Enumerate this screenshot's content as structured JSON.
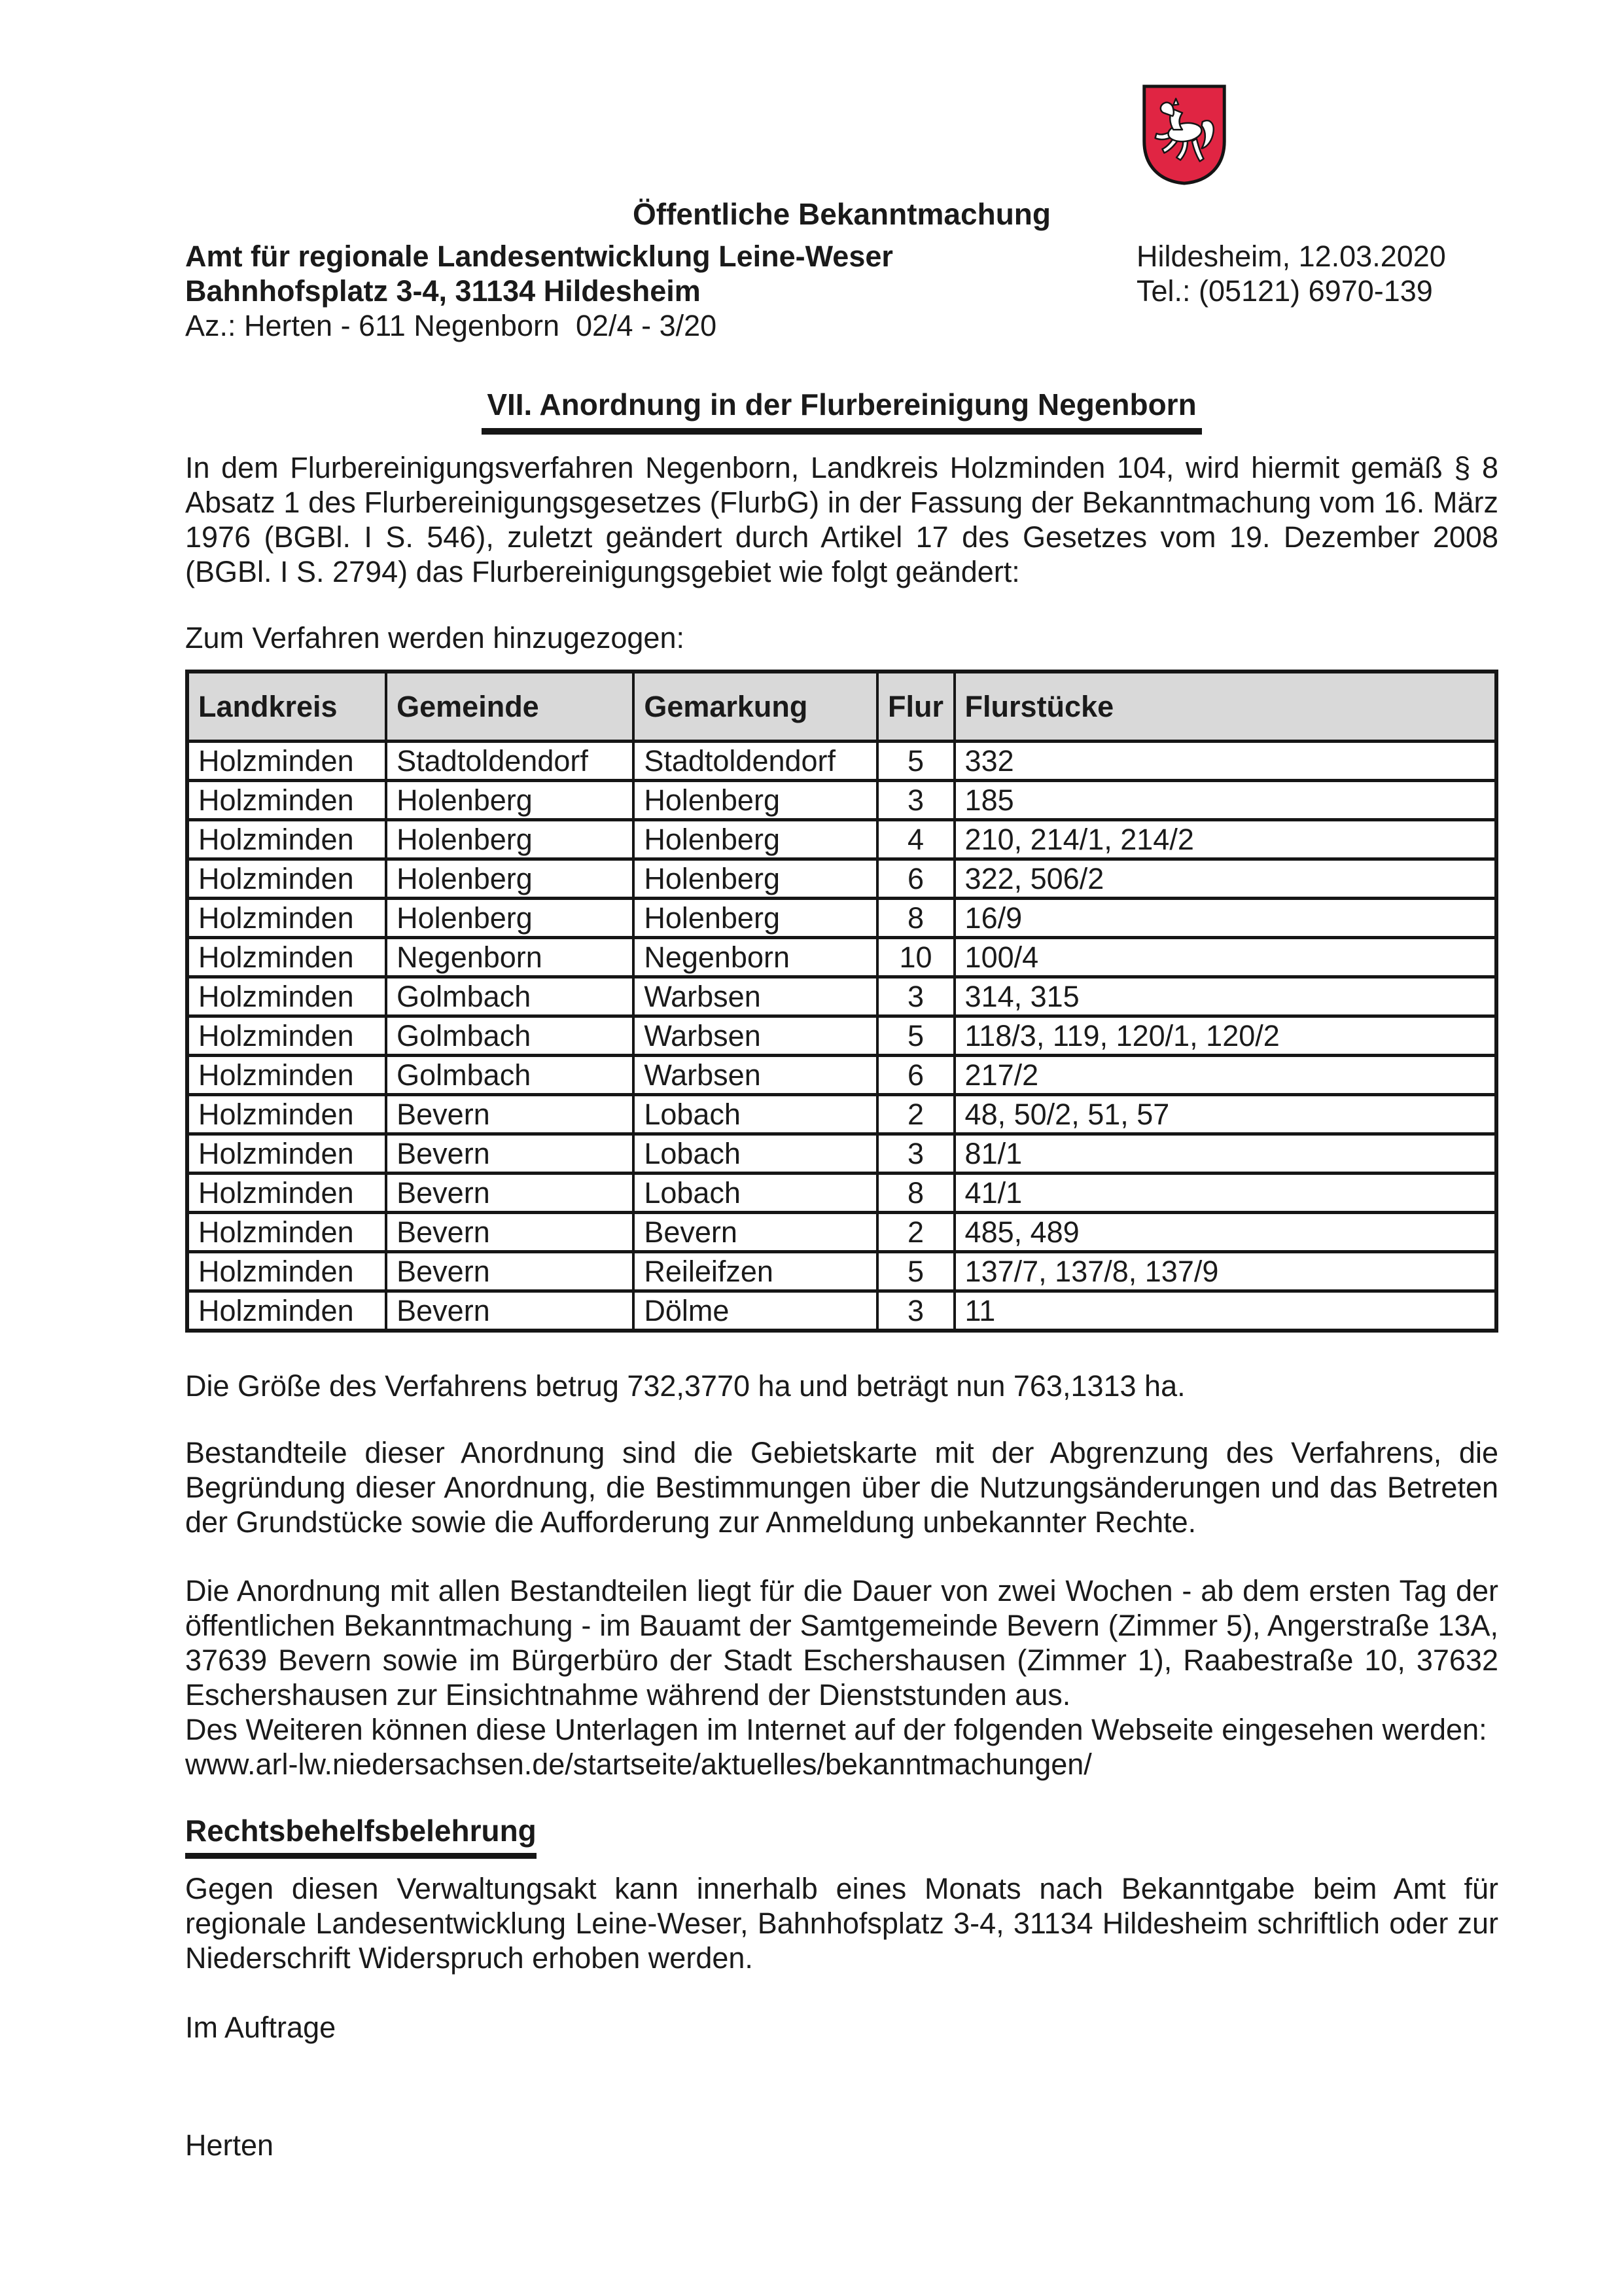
{
  "document": {
    "kind_label": "Öffentliche Bekanntmachung",
    "agency": {
      "name": "Amt für regionale Landesentwicklung Leine-Weser",
      "address": "Bahnhofsplatz 3-4, 31134 Hildesheim",
      "file_reference": "Az.: Herten - 611 Negenborn  02/4 - 3/20",
      "place_and_date": "Hildesheim, 12.03.2020",
      "phone": "Tel.: (05121) 6970-139"
    },
    "crest": {
      "label": "Landeswappen Niedersachsen",
      "shield_color": "#e02543",
      "horse_color": "#ffffff",
      "outline_color": "#141414"
    },
    "main_heading": "VII. Anordnung in der Flurbereinigung Negenborn",
    "intro_paragraph": "In dem Flurbereinigungsverfahren Negenborn, Landkreis Holzminden 104, wird hiermit gemäß § 8 Absatz 1 des Flurbereinigungsgesetzes (FlurbG) in der Fassung der Bekanntmachung vom 16. März 1976 (BGBl. I S. 546), zuletzt geändert durch Artikel 17 des Gesetzes vom 19. Dezember 2008 (BGBl. I S. 2794) das Flurbereinigungsgebiet wie folgt geändert:",
    "table_intro": "Zum Verfahren werden hinzugezogen:",
    "area_paragraph": "Die Größe des Verfahrens betrug 732,3770 ha und beträgt nun 763,1313 ha.",
    "components_paragraph": "Bestandteile dieser Anordnung sind die Gebietskarte mit der Abgrenzung des Verfahrens, die Begründung dieser Anordnung, die Bestimmungen über die Nutzungsänderungen und das Betreten der Grundstücke sowie die Aufforderung zur Anmeldung unbekannter Rechte.",
    "display_paragraph": "Die Anordnung mit allen Bestandteilen liegt für die Dauer von zwei Wochen - ab dem ersten Tag der öffentlichen Bekanntmachung - im Bauamt der Samtgemeinde Bevern (Zimmer 5), Angerstraße 13A, 37639 Bevern sowie im Bürgerbüro der Stadt Eschershausen (Zimmer 1), Raabestraße 10, 37632 Eschershausen zur Einsichtnahme während der Dienststunden aus.",
    "internet_note": "Des Weiteren können diese Unterlagen im Internet auf der folgenden Webseite eingesehen werden:",
    "website_url": "www.arl-lw.niedersachsen.de/startseite/aktuelles/bekanntmachungen/",
    "appeal_heading": "Rechtsbehelfsbelehrung",
    "appeal_paragraph": "Gegen diesen Verwaltungsakt kann innerhalb eines Monats nach Bekanntgabe beim Amt für regionale Landesentwicklung Leine-Weser, Bahnhofsplatz 3-4, 31134 Hildesheim schriftlich oder zur Niederschrift Widerspruch erhoben werden.",
    "closing_formula": "Im Auftrage",
    "signature_name": "Herten"
  },
  "table": {
    "headers": [
      "Landkreis",
      "Gemeinde",
      "Gemarkung",
      "Flur",
      "Flurstücke"
    ],
    "rows": [
      [
        "Holzminden",
        "Stadtoldendorf",
        "Stadtoldendorf",
        "5",
        "332"
      ],
      [
        "Holzminden",
        "Holenberg",
        "Holenberg",
        "3",
        "185"
      ],
      [
        "Holzminden",
        "Holenberg",
        "Holenberg",
        "4",
        "210, 214/1, 214/2"
      ],
      [
        "Holzminden",
        "Holenberg",
        "Holenberg",
        "6",
        "322, 506/2"
      ],
      [
        "Holzminden",
        "Holenberg",
        "Holenberg",
        "8",
        "16/9"
      ],
      [
        "Holzminden",
        "Negenborn",
        "Negenborn",
        "10",
        "100/4"
      ],
      [
        "Holzminden",
        "Golmbach",
        "Warbsen",
        "3",
        "314, 315"
      ],
      [
        "Holzminden",
        "Golmbach",
        "Warbsen",
        "5",
        "118/3, 119, 120/1, 120/2"
      ],
      [
        "Holzminden",
        "Golmbach",
        "Warbsen",
        "6",
        "217/2"
      ],
      [
        "Holzminden",
        "Bevern",
        "Lobach",
        "2",
        "48, 50/2, 51, 57"
      ],
      [
        "Holzminden",
        "Bevern",
        "Lobach",
        "3",
        "81/1"
      ],
      [
        "Holzminden",
        "Bevern",
        "Lobach",
        "8",
        "41/1"
      ],
      [
        "Holzminden",
        "Bevern",
        "Bevern",
        "2",
        "485, 489"
      ],
      [
        "Holzminden",
        "Bevern",
        "Reileifzen",
        "5",
        "137/7, 137/8, 137/9"
      ],
      [
        "Holzminden",
        "Bevern",
        "Dölme",
        "3",
        "11"
      ]
    ]
  }
}
